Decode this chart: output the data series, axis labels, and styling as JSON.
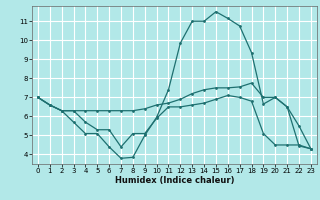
{
  "xlabel": "Humidex (Indice chaleur)",
  "background_color": "#b2e8e8",
  "grid_color": "#ffffff",
  "line_color": "#1e7070",
  "xlim": [
    -0.5,
    23.5
  ],
  "ylim": [
    3.5,
    11.8
  ],
  "yticks": [
    4,
    5,
    6,
    7,
    8,
    9,
    10,
    11
  ],
  "xticks": [
    0,
    1,
    2,
    3,
    4,
    5,
    6,
    7,
    8,
    9,
    10,
    11,
    12,
    13,
    14,
    15,
    16,
    17,
    18,
    19,
    20,
    21,
    22,
    23
  ],
  "curve1_x": [
    0,
    1,
    2,
    3,
    4,
    5,
    6,
    7,
    8,
    9,
    10,
    11,
    12,
    13,
    14,
    15,
    16,
    17,
    18,
    19,
    20,
    21,
    22,
    23
  ],
  "curve1_y": [
    7.0,
    6.6,
    6.3,
    6.3,
    6.3,
    6.3,
    6.3,
    6.3,
    6.3,
    6.4,
    6.6,
    6.7,
    6.9,
    7.2,
    7.4,
    7.5,
    7.5,
    7.55,
    7.75,
    7.0,
    7.0,
    6.5,
    4.45,
    4.3
  ],
  "curve2_x": [
    0,
    1,
    2,
    3,
    4,
    5,
    6,
    7,
    8,
    9,
    10,
    11,
    12,
    13,
    14,
    15,
    16,
    17,
    18,
    19,
    20,
    21,
    22,
    23
  ],
  "curve2_y": [
    7.0,
    6.6,
    6.3,
    5.7,
    5.1,
    5.1,
    4.4,
    3.8,
    3.85,
    5.0,
    5.95,
    7.4,
    9.85,
    11.0,
    11.0,
    11.5,
    11.15,
    10.75,
    9.35,
    6.65,
    7.0,
    6.5,
    5.5,
    4.3
  ],
  "curve3_x": [
    0,
    1,
    2,
    3,
    4,
    5,
    6,
    7,
    8,
    9,
    10,
    11,
    12,
    13,
    14,
    15,
    16,
    17,
    18,
    19,
    20,
    21,
    22,
    23
  ],
  "curve3_y": [
    7.0,
    6.6,
    6.3,
    6.3,
    5.7,
    5.3,
    5.3,
    4.4,
    5.1,
    5.1,
    5.9,
    6.5,
    6.5,
    6.6,
    6.7,
    6.9,
    7.1,
    7.0,
    6.8,
    5.1,
    4.5,
    4.5,
    4.5,
    4.3
  ]
}
